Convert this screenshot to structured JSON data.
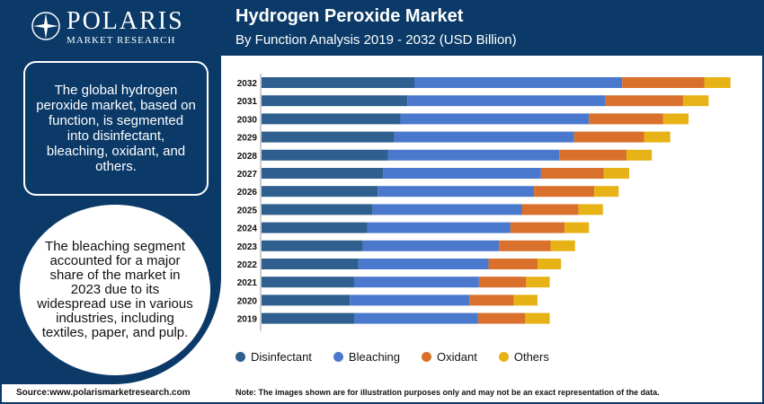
{
  "brand": {
    "name": "POLARIS",
    "tagline": "MARKET RESEARCH"
  },
  "header": {
    "title": "Hydrogen Peroxide Market",
    "subtitle": "By Function Analysis 2019 - 2032 (USD Billion)"
  },
  "sidebar": {
    "summary": "The global hydrogen peroxide market, based on function, is segmented into disinfectant, bleaching, oxidant, and others.",
    "highlight": "The bleaching segment accounted for a major share of the market in 2023 due to its widespread use in various industries, including textiles, paper, and pulp."
  },
  "footer": {
    "source": "Source:www.polarismarketresearch.com",
    "note": "Note: The images shown are for illustration purposes only and may not be an exact representation of the data."
  },
  "colors": {
    "navy": "#0b3a68",
    "disinfectant": "#2e5f8e",
    "bleaching": "#4a78cc",
    "oxidant": "#d9702b",
    "others": "#e6b216"
  },
  "chart_data": {
    "type": "bar",
    "orientation": "horizontal",
    "stacked": true,
    "categories": [
      "2032",
      "2031",
      "2030",
      "2029",
      "2028",
      "2027",
      "2026",
      "2025",
      "2024",
      "2023",
      "2022",
      "2021",
      "2020",
      "2019"
    ],
    "series": [
      {
        "name": "Disinfectant",
        "color": "#2e5f8e",
        "values": [
          1.75,
          1.67,
          1.59,
          1.52,
          1.45,
          1.39,
          1.33,
          1.27,
          1.21,
          1.16,
          1.11,
          1.06,
          1.01,
          1.06
        ]
      },
      {
        "name": "Bleaching",
        "color": "#4a78cc",
        "values": [
          2.38,
          2.27,
          2.16,
          2.06,
          1.96,
          1.81,
          1.79,
          1.71,
          1.64,
          1.56,
          1.49,
          1.43,
          1.37,
          1.42
        ]
      },
      {
        "name": "Oxidant",
        "color": "#d9702b",
        "values": [
          0.94,
          0.89,
          0.85,
          0.8,
          0.77,
          0.72,
          0.69,
          0.65,
          0.62,
          0.59,
          0.56,
          0.54,
          0.51,
          0.54
        ]
      },
      {
        "name": "Others",
        "color": "#e6b216",
        "values": [
          0.3,
          0.29,
          0.29,
          0.3,
          0.29,
          0.29,
          0.28,
          0.28,
          0.28,
          0.28,
          0.27,
          0.27,
          0.27,
          0.28
        ]
      }
    ],
    "legend_position": "bottom",
    "grid": false,
    "xlim": [
      0,
      5.6
    ]
  }
}
